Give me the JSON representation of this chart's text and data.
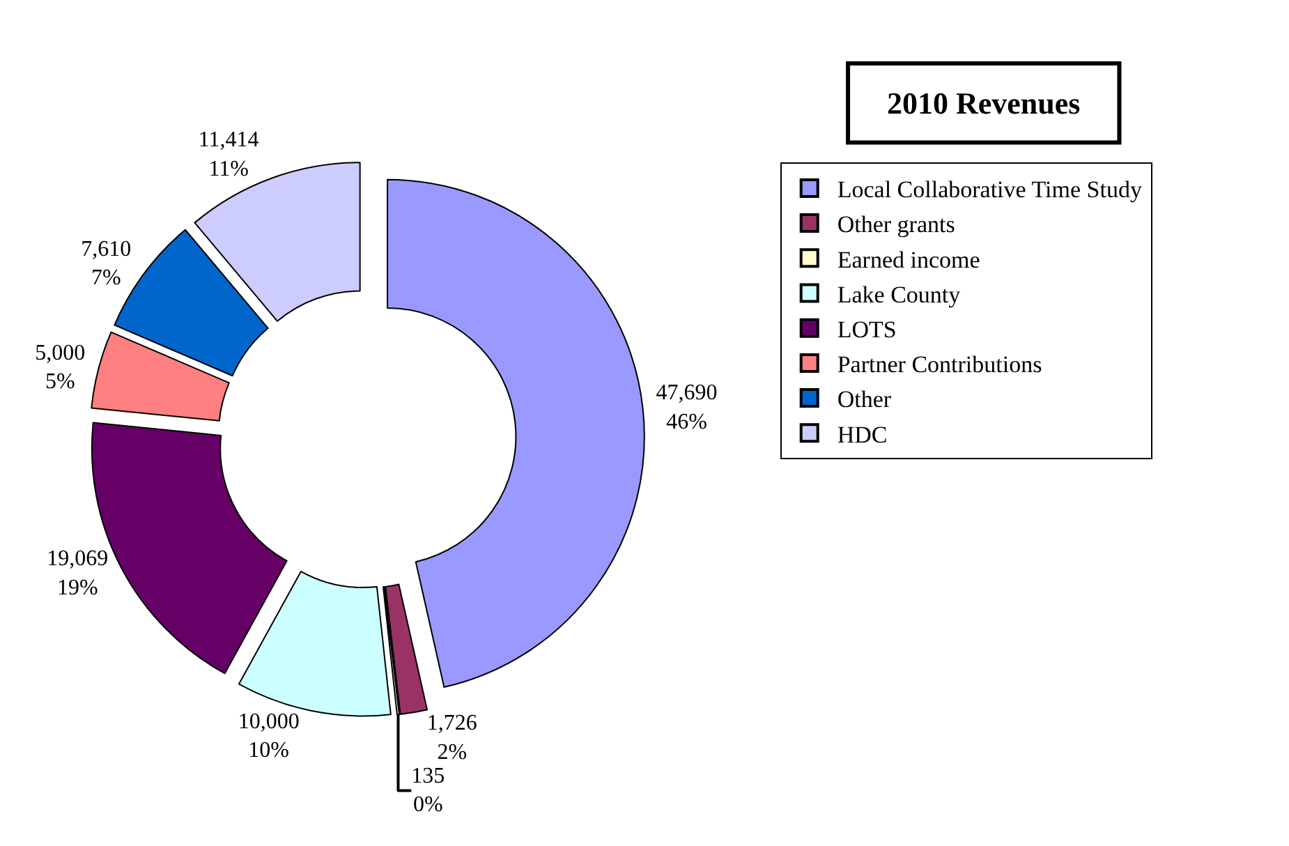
{
  "chart_data": {
    "type": "donut",
    "title": "2010 Revenues",
    "categories": [
      "Local Collaborative Time Study",
      "Other grants",
      "Earned income",
      "Lake County",
      "LOTS",
      "Partner Contributions",
      "Other",
      "HDC"
    ],
    "values": [
      47690,
      1726,
      135,
      10000,
      19069,
      5000,
      7610,
      11414
    ],
    "colors": [
      "#9999ff",
      "#993366",
      "#ffffcc",
      "#ccffff",
      "#660066",
      "#ff8080",
      "#0066cc",
      "#ccccff"
    ],
    "value_labels": [
      "47,690\n46%",
      "1,726\n2%",
      "135\n0%",
      "10,000\n10%",
      "19,069\n19%",
      "5,000\n5%",
      "7,610\n7%",
      "11,414\n11%"
    ],
    "legend": "right"
  }
}
